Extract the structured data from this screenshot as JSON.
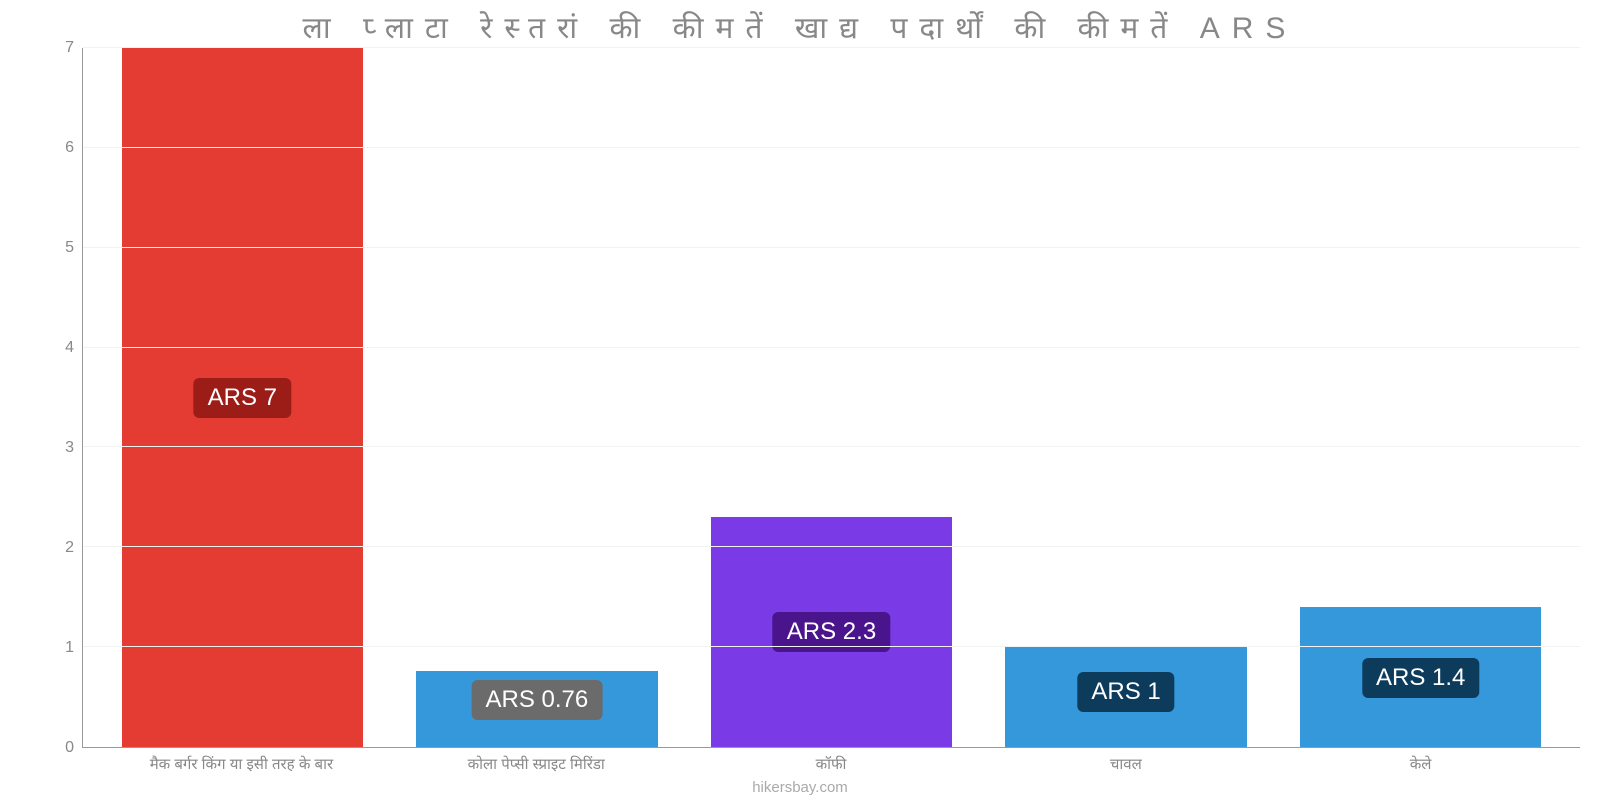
{
  "chart": {
    "type": "bar",
    "title": "ला प्लाटा रेस्तरां की कीमतें खाद्य पदार्थों की कीमतें ARS",
    "title_fontsize": 30,
    "title_color": "#888888",
    "footer": "hikersbay.com",
    "footer_color": "#aaaaaa",
    "background_color": "#ffffff",
    "grid_color": "#f2f2f2",
    "axis_color": "#999999",
    "tick_color": "#888888",
    "ylim": [
      0,
      7
    ],
    "ytick_step": 1,
    "bar_width": 0.82,
    "categories": [
      "मैक बर्गर किंग या इसी तरह के बार",
      "कोला पेप्सी स्प्राइट मिरिंडा",
      "कॉफी",
      "चावल",
      "केले"
    ],
    "values": [
      7,
      0.76,
      2.3,
      1,
      1.4
    ],
    "value_labels": [
      "ARS 7",
      "ARS 0.76",
      "ARS 2.3",
      "ARS 1",
      "ARS 1.4"
    ],
    "bar_colors": [
      "#e43b33",
      "#3498db",
      "#7a3be6",
      "#3498db",
      "#3498db"
    ],
    "badge_colors": [
      "#9c1d17",
      "#6b6b6b",
      "#4a148c",
      "#0d3b5c",
      "#0d3b5c"
    ],
    "badge_text_color": "#ffffff",
    "badge_fontsize": 24,
    "xtick_fontsize": 15,
    "ytick_fontsize": 16
  }
}
